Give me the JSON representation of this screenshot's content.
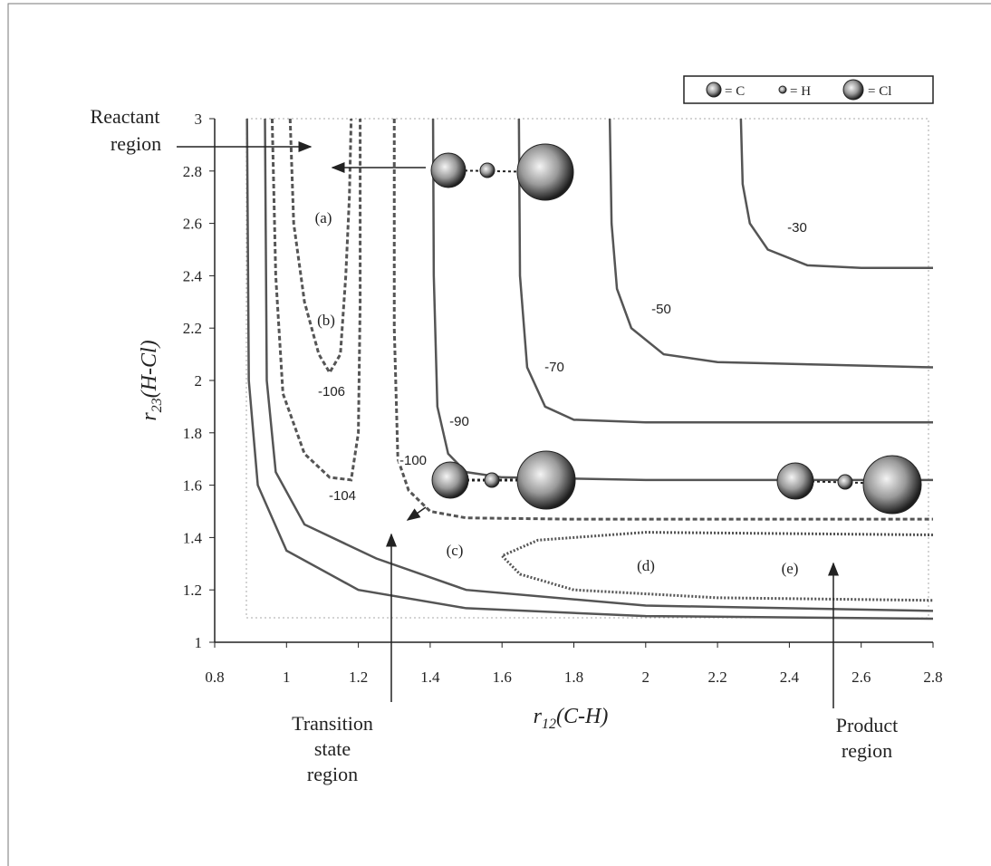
{
  "chart_data": {
    "type": "contour",
    "xlabel": {
      "symbol": "r",
      "subscript": "12",
      "text": "(C-H)"
    },
    "ylabel": {
      "symbol": "r",
      "subscript": "23",
      "text": "(H-Cl)"
    },
    "xlim": [
      0.8,
      2.8
    ],
    "ylim": [
      1,
      3
    ],
    "xticks": [
      0.8,
      1,
      1.2,
      1.4,
      1.6,
      1.8,
      2,
      2.2,
      2.4,
      2.6,
      2.8
    ],
    "yticks": [
      1,
      1.2,
      1.4,
      1.6,
      1.8,
      2,
      2.2,
      2.4,
      2.6,
      2.8,
      3
    ],
    "color": "#555555",
    "legend": [
      "= C",
      "= H",
      "= Cl"
    ],
    "contours": [
      {
        "level": -30,
        "style": "solid",
        "x": [
          2.265,
          2.27,
          2.29,
          2.34,
          2.45,
          2.6,
          2.8
        ],
        "y": [
          3,
          2.75,
          2.6,
          2.5,
          2.44,
          2.43,
          2.43
        ]
      },
      {
        "level": -50,
        "style": "solid",
        "x": [
          1.9,
          1.905,
          1.92,
          1.96,
          2.05,
          2.2,
          2.5,
          2.8
        ],
        "y": [
          3,
          2.6,
          2.35,
          2.2,
          2.1,
          2.07,
          2.06,
          2.05
        ]
      },
      {
        "level": -70,
        "style": "solid",
        "x": [
          1.647,
          1.65,
          1.67,
          1.72,
          1.8,
          2.0,
          2.4,
          2.8
        ],
        "y": [
          3,
          2.4,
          2.05,
          1.9,
          1.85,
          1.84,
          1.84,
          1.84
        ]
      },
      {
        "level": -90,
        "style": "solid",
        "x": [
          1.408,
          1.41,
          1.42,
          1.45,
          1.5,
          1.6,
          2.0,
          2.4,
          2.8
        ],
        "y": [
          3,
          2.4,
          1.9,
          1.72,
          1.65,
          1.63,
          1.62,
          1.62,
          1.62
        ]
      },
      {
        "level": -100,
        "style": "dashed",
        "x": [
          1.3,
          1.3,
          1.31,
          1.34,
          1.4,
          1.5,
          1.8,
          2.4,
          2.8
        ],
        "y": [
          3,
          2.2,
          1.7,
          1.58,
          1.5,
          1.475,
          1.47,
          1.47,
          1.47
        ]
      },
      {
        "level": -104,
        "style": "dashed",
        "x": [
          0.96,
          0.97,
          0.99,
          1.05,
          1.12,
          1.18,
          1.2,
          1.205,
          1.205
        ],
        "y": [
          3,
          2.4,
          1.95,
          1.72,
          1.63,
          1.62,
          1.8,
          2.3,
          3
        ]
      },
      {
        "level": -106,
        "style": "dashed",
        "x": [
          1.01,
          1.02,
          1.05,
          1.09,
          1.12,
          1.15,
          1.165,
          1.175,
          1.18
        ],
        "y": [
          3,
          2.6,
          2.3,
          2.1,
          2.03,
          2.1,
          2.4,
          2.7,
          3
        ]
      },
      {
        "level": null,
        "style": "solid",
        "x": [
          0.89,
          0.895,
          0.92,
          1.0,
          1.2,
          1.5,
          2.0,
          2.8
        ],
        "y": [
          3,
          2.0,
          1.6,
          1.35,
          1.2,
          1.13,
          1.1,
          1.09
        ]
      },
      {
        "level": null,
        "style": "solid",
        "x": [
          0.94,
          0.945,
          0.97,
          1.05,
          1.25,
          1.5,
          2.0,
          2.8
        ],
        "y": [
          3,
          2.0,
          1.65,
          1.45,
          1.32,
          1.2,
          1.14,
          1.12
        ]
      },
      {
        "level": null,
        "style": "dotted",
        "x": [
          2.8,
          2.0,
          1.7,
          1.6,
          1.65,
          1.8,
          2.2,
          2.8
        ],
        "y": [
          1.41,
          1.42,
          1.39,
          1.33,
          1.26,
          1.2,
          1.17,
          1.16
        ]
      }
    ],
    "annotations": [
      "(a)",
      "(b)",
      "(c)",
      "(d)",
      "(e)"
    ],
    "regions": [
      [
        "Reactant",
        "region"
      ],
      [
        "Transition",
        "state",
        "region"
      ],
      [
        "Product",
        "region"
      ]
    ]
  }
}
